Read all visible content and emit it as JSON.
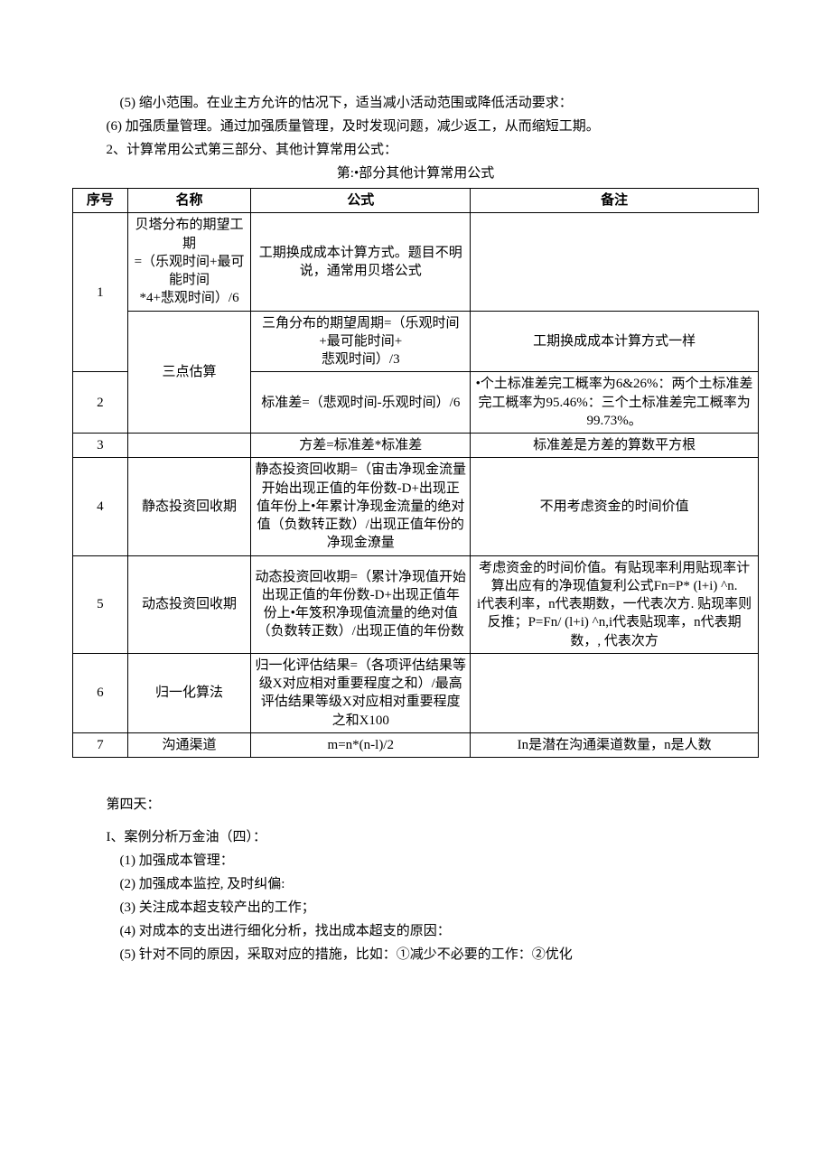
{
  "pre_paragraphs": [
    {
      "text": "(5) 缩小范围。在业主方允许的怙况下，适当减小活动范围或降低活动要求：",
      "indent": "indent-1"
    },
    {
      "text": "(6) 加强质量管理。通过加强质量管理，及时发现问题，减少返工，从而缩短工期。",
      "indent": "indent-2"
    },
    {
      "text": "2、计算常用公式第三部分、其他计算常用公式：",
      "indent": "indent-2"
    },
    {
      "text": "第:•部分其他计算常用公式",
      "indent": "center"
    }
  ],
  "table": {
    "headers": [
      "序号",
      "名称",
      "公式",
      "备注"
    ],
    "rows": [
      {
        "seq": "1",
        "seq_rowspan": 2,
        "name": "",
        "name_skip": true,
        "formula": "贝塔分布的期望工期\n=（乐观时间+最可能时间\n*4+悲观时间）/6",
        "note": "工期换成成本计算方式。题目不明说，通常用贝塔公式"
      },
      {
        "seq_skip": true,
        "name": "三点估算",
        "name_rowspan": 2,
        "formula": "三角分布的期望周期=（乐观时间+最可能时间+\n悲观时间）/3",
        "note": "工期换成成本计算方式一样"
      },
      {
        "seq": "2",
        "name_skip": true,
        "formula": "标准差=（悲观时间-乐观时间）/6",
        "note": " •个土标准差完工概率为6&26%：两个土标准差完工概率为95.46%：三个土标准差完工概率为99.73%。"
      },
      {
        "seq": "3",
        "name": "",
        "formula": "方差=标准差*标准差",
        "note": "标准差是方差的算数平方根"
      },
      {
        "seq": "4",
        "name": "静态投资回收期",
        "formula": "静态投资回收期=（宙击净现金流量开始出现正值的年份数-D+出现正值年份上•年累计净现金流量的绝对值（负数转正数）/出现正值年份的净现金潦量",
        "note": "不用考虑资金的时间价值"
      },
      {
        "seq": "5",
        "name": "动态投资回收期",
        "formula": "动态投资回收期=（累计净现值开始出现正值的年份数-D+出现正值年份上•年笈积净现值流量的绝对值（负数转正数）/出现正值的年份数",
        "note": "考虑资金的时间价值。有贴现率利用贴现率计算出应有的净现值复利公式Fn=P* (l+i) ^n.\ni代表利率，n代表期数，一代表次方. 贴现率则反推；P=Fn/ (l+i) ^n,i代表贴现率，n代表期数，, 代表次方"
      },
      {
        "seq": "6",
        "name": "归一化算法",
        "formula": "归一化评估结果=（各项评估结果等级X对应相对重要程度之和）/最高评估结果等级X对应相对重要程度之和X100",
        "note": ""
      },
      {
        "seq": "7",
        "name": "沟通渠道",
        "formula": "m=n*(n-l)/2",
        "note": "In是潜在沟通渠道数量，n是人数"
      }
    ]
  },
  "post_paragraphs": [
    {
      "text": "第四天：",
      "indent": "indent-2"
    },
    {
      "text": "I、案例分析万金油（四）：",
      "indent": "indent-2"
    },
    {
      "text": "(1) 加强成本管理：",
      "indent": "indent-1"
    },
    {
      "text": "(2) 加强成本监控, 及时纠偏:",
      "indent": "indent-1"
    },
    {
      "text": "(3) 关注成本超支较产出的工作；",
      "indent": "indent-1"
    },
    {
      "text": "(4) 对成本的支出进行细化分析，找出成本超支的原因：",
      "indent": "indent-1"
    },
    {
      "text": "(5) 针对不同的原因，采取对应的措施，比如：①减少不必要的工作：②优化",
      "indent": "indent-1"
    }
  ]
}
